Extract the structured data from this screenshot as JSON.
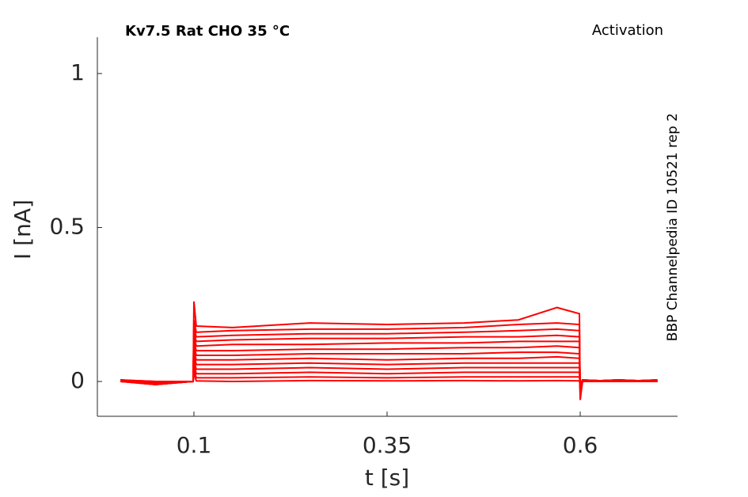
{
  "chart_data": {
    "type": "line",
    "title": "Kv7.5  Rat  CHO  35 °C",
    "annotation": "Activation",
    "side_label": "BBP Channelpedia ID 10521 rep 2",
    "x_label": "t [s]",
    "y_label": "I [nA]",
    "xlim": [
      -0.025,
      0.726
    ],
    "ylim": [
      -0.113,
      1.118
    ],
    "xticks": [
      0.1,
      0.35,
      0.6
    ],
    "yticks": [
      0,
      0.5,
      1
    ],
    "x": [
      0.005,
      0.05,
      0.099,
      0.1,
      0.103,
      0.15,
      0.25,
      0.35,
      0.45,
      0.52,
      0.57,
      0.599,
      0.6,
      0.603,
      0.65,
      0.7
    ],
    "series": [
      {
        "color": "#ff0000",
        "values": [
          0.005,
          -0.01,
          0.0,
          0.26,
          0.18,
          0.175,
          0.19,
          0.185,
          0.19,
          0.2,
          0.24,
          0.22,
          -0.06,
          0.0,
          0.005,
          0.0
        ]
      },
      {
        "color": "#ff0000",
        "values": [
          0.0,
          -0.005,
          0.0,
          0.2,
          0.16,
          0.165,
          0.17,
          0.17,
          0.175,
          0.185,
          0.19,
          0.185,
          -0.05,
          0.0,
          0.0,
          0.005
        ]
      },
      {
        "color": "#ff0000",
        "values": [
          0.005,
          -0.005,
          0.0,
          0.18,
          0.145,
          0.15,
          0.155,
          0.155,
          0.16,
          0.165,
          0.17,
          0.165,
          -0.045,
          0.005,
          0.0,
          0.0
        ]
      },
      {
        "color": "#ff0000",
        "values": [
          0.0,
          -0.01,
          0.0,
          0.16,
          0.13,
          0.135,
          0.14,
          0.14,
          0.145,
          0.145,
          0.15,
          0.145,
          -0.04,
          0.0,
          0.005,
          0.0
        ]
      },
      {
        "color": "#ff0000",
        "values": [
          0.005,
          0.0,
          0.0,
          0.15,
          0.115,
          0.12,
          0.12,
          0.125,
          0.125,
          0.13,
          0.13,
          0.13,
          -0.035,
          0.0,
          0.0,
          0.005
        ]
      },
      {
        "color": "#ff0000",
        "values": [
          0.0,
          -0.005,
          0.0,
          0.13,
          0.1,
          0.1,
          0.105,
          0.105,
          0.11,
          0.11,
          0.115,
          0.11,
          -0.03,
          0.005,
          0.0,
          0.0
        ]
      },
      {
        "color": "#ff0000",
        "values": [
          0.005,
          -0.005,
          0.0,
          0.12,
          0.085,
          0.085,
          0.09,
          0.09,
          0.09,
          0.095,
          0.095,
          0.09,
          -0.03,
          0.0,
          0.005,
          0.0
        ]
      },
      {
        "color": "#ff0000",
        "values": [
          0.0,
          0.0,
          0.0,
          0.1,
          0.07,
          0.07,
          0.075,
          0.07,
          0.075,
          0.075,
          0.08,
          0.075,
          -0.025,
          0.0,
          0.0,
          0.005
        ]
      },
      {
        "color": "#ff0000",
        "values": [
          0.005,
          -0.005,
          0.0,
          0.09,
          0.055,
          0.055,
          0.06,
          0.055,
          0.06,
          0.06,
          0.06,
          0.06,
          -0.02,
          0.005,
          0.0,
          0.0
        ]
      },
      {
        "color": "#ff0000",
        "values": [
          0.0,
          -0.01,
          0.0,
          0.07,
          0.04,
          0.04,
          0.045,
          0.04,
          0.045,
          0.045,
          0.045,
          0.045,
          -0.02,
          0.0,
          0.005,
          0.0
        ]
      },
      {
        "color": "#ff0000",
        "values": [
          0.005,
          0.0,
          0.0,
          0.06,
          0.025,
          0.025,
          0.03,
          0.025,
          0.03,
          0.03,
          0.03,
          0.03,
          -0.015,
          0.0,
          0.0,
          0.005
        ]
      },
      {
        "color": "#ff0000",
        "values": [
          0.0,
          -0.005,
          0.0,
          0.04,
          0.012,
          0.012,
          0.015,
          0.012,
          0.015,
          0.015,
          0.015,
          0.015,
          -0.01,
          0.005,
          0.0,
          0.0
        ]
      },
      {
        "color": "#ff0000",
        "values": [
          0.005,
          -0.005,
          0.0,
          0.03,
          0.002,
          0.0,
          0.003,
          0.002,
          0.003,
          0.002,
          0.003,
          0.002,
          -0.01,
          0.0,
          0.005,
          0.0
        ]
      }
    ]
  }
}
